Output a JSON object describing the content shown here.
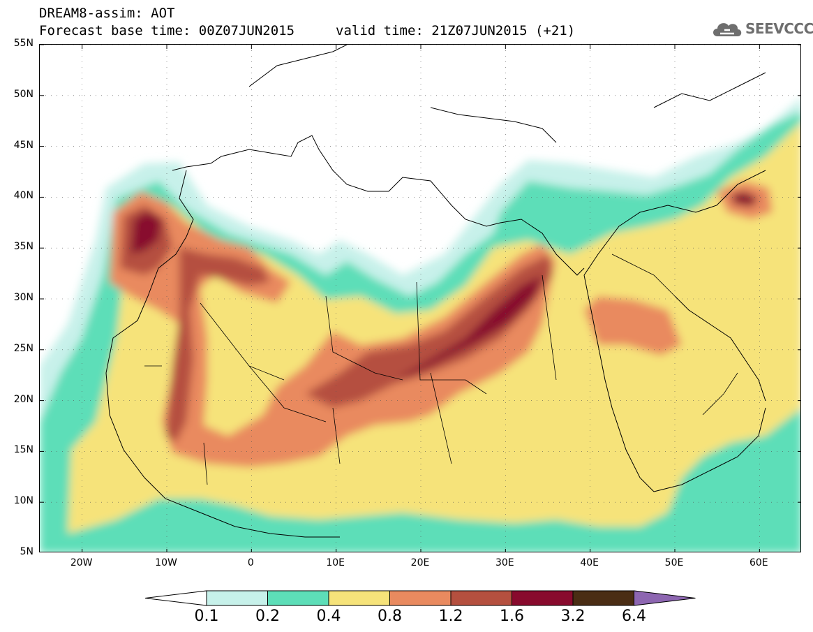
{
  "header": {
    "title_line1": "DREAM8-assim: AOT",
    "title_line2_base": "Forecast base time: 00Z07JUN2015",
    "title_line2_valid": "valid time: 21Z07JUN2015 (+21)",
    "logo_text": "SEEVCCC",
    "logo_icon": "cloud-icon"
  },
  "map": {
    "lon_range": [
      -25,
      65
    ],
    "lat_range": [
      5,
      55
    ],
    "lat_ticks": [
      "55N",
      "50N",
      "45N",
      "40N",
      "35N",
      "30N",
      "25N",
      "20N",
      "15N",
      "10N",
      "5N"
    ],
    "lat_values": [
      55,
      50,
      45,
      40,
      35,
      30,
      25,
      20,
      15,
      10,
      5
    ],
    "lon_ticks": [
      "20W",
      "10W",
      "0",
      "10E",
      "20E",
      "30E",
      "40E",
      "50E",
      "60E"
    ],
    "lon_values": [
      -20,
      -10,
      0,
      10,
      20,
      30,
      40,
      50,
      60
    ],
    "field": "AOT",
    "colors": {
      "c0.1": "#c7f1ea",
      "c0.2": "#5ddeb8",
      "c0.4": "#f6e37a",
      "c0.8": "#e98a5f",
      "c1.2": "#b5503f",
      "c1.6": "#880a2d",
      "c3.2": "#4a2d14",
      "c6.4": "#8d66b1"
    }
  },
  "colorbar": {
    "labels": [
      "0.1",
      "0.2",
      "0.4",
      "0.8",
      "1.2",
      "1.6",
      "3.2",
      "6.4"
    ],
    "colors": [
      "#c7f1ea",
      "#5ddeb8",
      "#f6e37a",
      "#e98a5f",
      "#b5503f",
      "#880a2d",
      "#4a2d14"
    ],
    "under_color": "#ffffff",
    "over_color": "#8d66b1"
  }
}
